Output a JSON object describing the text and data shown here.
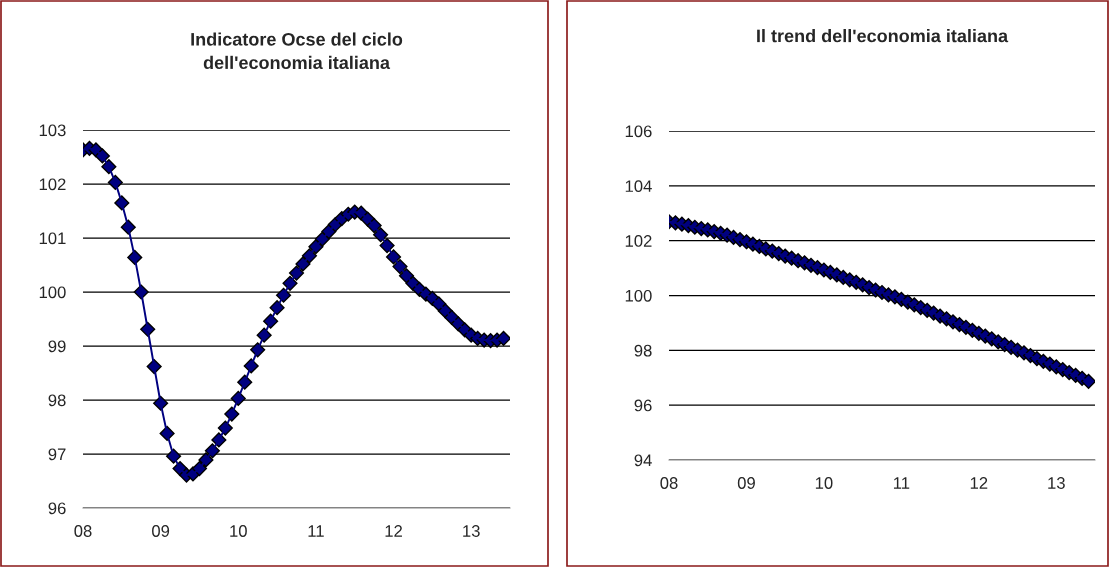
{
  "chart_data": [
    {
      "type": "line",
      "title": "Indicatore Ocse del ciclo\ndell'economia italiana",
      "x": [
        8.0,
        8.0833,
        8.1667,
        8.25,
        8.3333,
        8.4167,
        8.5,
        8.5833,
        8.6667,
        8.75,
        8.8333,
        8.9167,
        9.0,
        9.0833,
        9.1667,
        9.25,
        9.3333,
        9.4167,
        9.5,
        9.5833,
        9.6667,
        9.75,
        9.8333,
        9.9167,
        10.0,
        10.0833,
        10.1667,
        10.25,
        10.3333,
        10.4167,
        10.5,
        10.5833,
        10.6667,
        10.75,
        10.8333,
        10.9167,
        11.0,
        11.0833,
        11.1667,
        11.25,
        11.3333,
        11.4167,
        11.5,
        11.5833,
        11.6667,
        11.75,
        11.8333,
        11.9167,
        12.0,
        12.0833,
        12.1667,
        12.25,
        12.3333,
        12.4167,
        12.5,
        12.5833,
        12.6667,
        12.75,
        12.8333,
        12.9167,
        13.0,
        13.0833,
        13.1667,
        13.25,
        13.3333,
        13.4167
      ],
      "series": [
        {
          "color": "#000080",
          "values": [
            102.63,
            102.66,
            102.63,
            102.52,
            102.32,
            102.03,
            101.65,
            101.2,
            100.64,
            100.0,
            99.31,
            98.62,
            97.94,
            97.38,
            96.96,
            96.73,
            96.61,
            96.63,
            96.73,
            96.89,
            97.06,
            97.26,
            97.48,
            97.74,
            98.03,
            98.33,
            98.63,
            98.93,
            99.2,
            99.46,
            99.71,
            99.94,
            100.16,
            100.35,
            100.52,
            100.67,
            100.84,
            100.98,
            101.12,
            101.25,
            101.36,
            101.44,
            101.48,
            101.46,
            101.35,
            101.23,
            101.06,
            100.86,
            100.65,
            100.47,
            100.3,
            100.16,
            100.05,
            99.96,
            99.88,
            99.78,
            99.65,
            99.53,
            99.41,
            99.3,
            99.2,
            99.14,
            99.11,
            99.1,
            99.11,
            99.14
          ]
        }
      ],
      "xlim": [
        8,
        13.5
      ],
      "xticks": [
        {
          "value": 8,
          "label": "08"
        },
        {
          "value": 9,
          "label": "09"
        },
        {
          "value": 10,
          "label": "10"
        },
        {
          "value": 11,
          "label": "11"
        },
        {
          "value": 12,
          "label": "12"
        },
        {
          "value": 13,
          "label": "13"
        }
      ],
      "ylim": [
        96,
        103
      ],
      "yticks": [
        96,
        97,
        98,
        99,
        100,
        101,
        102,
        103
      ],
      "grid": "y",
      "marker": "diamond",
      "line_style": "solid",
      "legend": false
    },
    {
      "type": "line",
      "title": "Il trend dell'economia italiana",
      "x": [
        8.0,
        8.0833,
        8.1667,
        8.25,
        8.3333,
        8.4167,
        8.5,
        8.5833,
        8.6667,
        8.75,
        8.8333,
        8.9167,
        9.0,
        9.0833,
        9.1667,
        9.25,
        9.3333,
        9.4167,
        9.5,
        9.5833,
        9.6667,
        9.75,
        9.8333,
        9.9167,
        10.0,
        10.0833,
        10.1667,
        10.25,
        10.3333,
        10.4167,
        10.5,
        10.5833,
        10.6667,
        10.75,
        10.8333,
        10.9167,
        11.0,
        11.0833,
        11.1667,
        11.25,
        11.3333,
        11.4167,
        11.5,
        11.5833,
        11.6667,
        11.75,
        11.8333,
        11.9167,
        12.0,
        12.0833,
        12.1667,
        12.25,
        12.3333,
        12.4167,
        12.5,
        12.5833,
        12.6667,
        12.75,
        12.8333,
        12.9167,
        13.0,
        13.0833,
        13.1667,
        13.25,
        13.3333,
        13.4167
      ],
      "series": [
        {
          "color": "#000080",
          "values": [
            102.69,
            102.65,
            102.6,
            102.55,
            102.49,
            102.44,
            102.39,
            102.33,
            102.27,
            102.2,
            102.12,
            102.04,
            101.96,
            101.87,
            101.79,
            101.7,
            101.62,
            101.53,
            101.44,
            101.36,
            101.27,
            101.19,
            101.1,
            101.02,
            100.93,
            100.84,
            100.75,
            100.66,
            100.57,
            100.48,
            100.39,
            100.29,
            100.2,
            100.11,
            100.02,
            99.95,
            99.86,
            99.76,
            99.66,
            99.56,
            99.46,
            99.36,
            99.25,
            99.15,
            99.04,
            98.94,
            98.84,
            98.73,
            98.62,
            98.52,
            98.42,
            98.31,
            98.21,
            98.11,
            98.01,
            97.91,
            97.81,
            97.7,
            97.6,
            97.5,
            97.4,
            97.3,
            97.19,
            97.09,
            96.98,
            96.87
          ]
        }
      ],
      "xlim": [
        8,
        13.5
      ],
      "xticks": [
        {
          "value": 8,
          "label": "08"
        },
        {
          "value": 9,
          "label": "09"
        },
        {
          "value": 10,
          "label": "10"
        },
        {
          "value": 11,
          "label": "11"
        },
        {
          "value": 12,
          "label": "12"
        },
        {
          "value": 13,
          "label": "13"
        }
      ],
      "ylim": [
        94,
        106
      ],
      "yticks": [
        94,
        96,
        98,
        100,
        102,
        104,
        106
      ],
      "grid": "y",
      "marker": "diamond",
      "line_style": "solid",
      "legend": false
    }
  ]
}
